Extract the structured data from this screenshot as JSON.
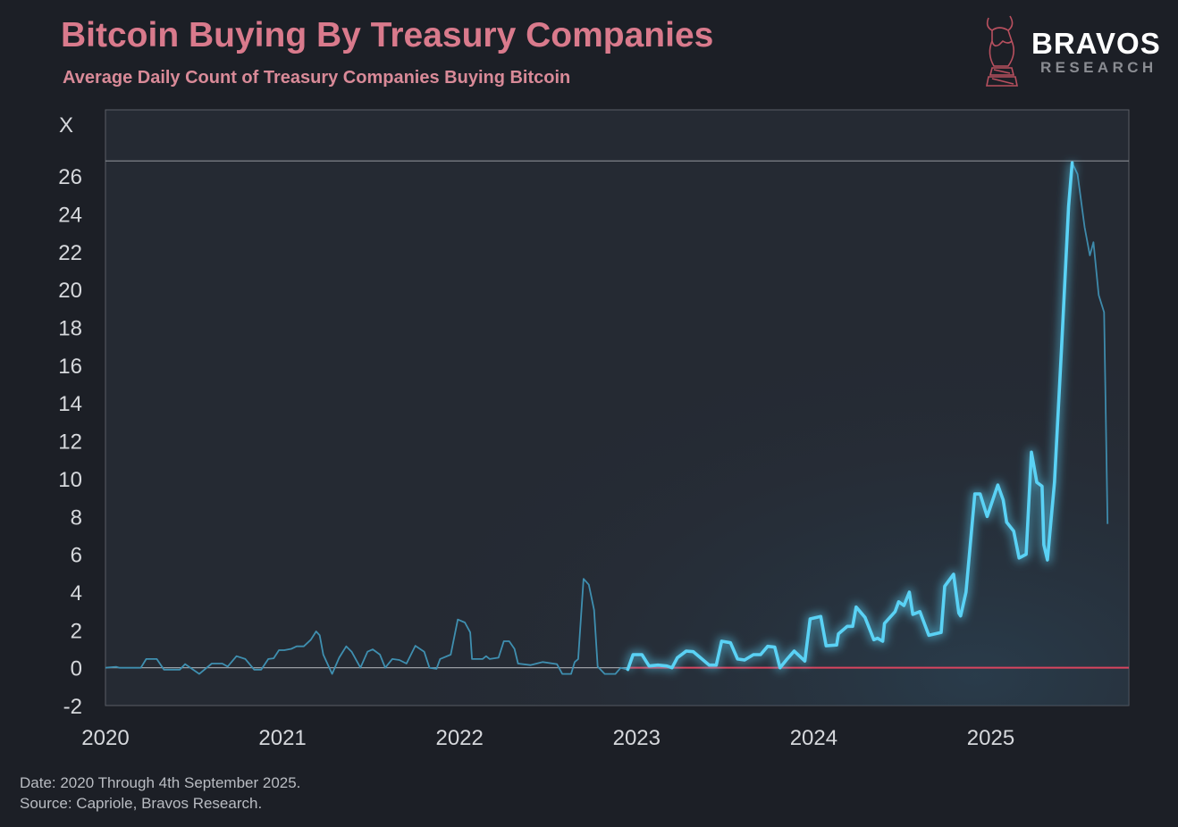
{
  "header": {
    "title": "Bitcoin Buying By Treasury Companies",
    "subtitle": "Average Daily Count of Treasury Companies Buying Bitcoin"
  },
  "logo": {
    "brand": "BRAVOS",
    "tagline": "RESEARCH",
    "icon": "bull-knight-chess-icon"
  },
  "footer": {
    "date_note": "Date: 2020 Through 4th September 2025.",
    "source_note": "Source: Capriole, Bravos Research."
  },
  "colors": {
    "title": "#d97a8c",
    "series": "#5ad2f5",
    "zero_line_recent": "#d9455f",
    "background": "#1c1f26",
    "plot_bg": "#252a33"
  },
  "chart_data": {
    "type": "line",
    "title": "Bitcoin Buying By Treasury Companies",
    "subtitle": "Average Daily Count of Treasury Companies Buying Bitcoin",
    "ylabel": "X",
    "xlabel": "",
    "xlim": [
      2020,
      2025.78
    ],
    "ylim": [
      -2,
      29.5
    ],
    "xticks": [
      "2020",
      "2021",
      "2022",
      "2023",
      "2024",
      "2025"
    ],
    "yticks": [
      "-2",
      "0",
      "2",
      "4",
      "6",
      "8",
      "10",
      "12",
      "14",
      "16",
      "18",
      "20",
      "22",
      "24",
      "26"
    ],
    "reference_lines": [
      {
        "y": 0
      },
      {
        "y": 26.8
      }
    ],
    "grid": false,
    "highlight_range": [
      2022.95,
      2025.46
    ],
    "series": [
      {
        "x": [
          2020.0,
          2020.06,
          2020.08,
          2020.2,
          2020.23,
          2020.29,
          2020.33,
          2020.42,
          2020.45,
          2020.48,
          2020.53,
          2020.6,
          2020.66,
          2020.69,
          2020.74,
          2020.79,
          2020.84,
          2020.88,
          2020.92,
          2020.95,
          2020.98,
          2021.01,
          2021.05,
          2021.08,
          2021.12,
          2021.16,
          2021.19,
          2021.21,
          2021.23,
          2021.28,
          2021.32,
          2021.36,
          2021.39,
          2021.44,
          2021.48,
          2021.51,
          2021.55,
          2021.58,
          2021.62,
          2021.66,
          2021.7,
          2021.75,
          2021.8,
          2021.83,
          2021.87,
          2021.89,
          2021.95,
          2021.99,
          2022.03,
          2022.06,
          2022.07,
          2022.13,
          2022.15,
          2022.17,
          2022.22,
          2022.25,
          2022.28,
          2022.31,
          2022.33,
          2022.4,
          2022.47,
          2022.55,
          2022.58,
          2022.63,
          2022.65,
          2022.67,
          2022.7,
          2022.73,
          2022.76,
          2022.78,
          2022.82,
          2022.88,
          2022.91,
          2022.95,
          2022.98,
          2023.03,
          2023.07,
          2023.12,
          2023.17,
          2023.2,
          2023.23,
          2023.28,
          2023.32,
          2023.36,
          2023.41,
          2023.45,
          2023.48,
          2023.53,
          2023.57,
          2023.61,
          2023.66,
          2023.7,
          2023.74,
          2023.78,
          2023.81,
          2023.85,
          2023.89,
          2023.95,
          2023.98,
          2024.04,
          2024.07,
          2024.13,
          2024.14,
          2024.19,
          2024.22,
          2024.24,
          2024.29,
          2024.34,
          2024.36,
          2024.39,
          2024.4,
          2024.46,
          2024.48,
          2024.51,
          2024.54,
          2024.56,
          2024.6,
          2024.65,
          2024.72,
          2024.74,
          2024.79,
          2024.82,
          2024.83,
          2024.86,
          2024.91,
          2024.94,
          2024.98,
          2025.04,
          2025.07,
          2025.09,
          2025.13,
          2025.16,
          2025.2,
          2025.23,
          2025.26,
          2025.29,
          2025.3,
          2025.32,
          2025.36,
          2025.4,
          2025.44,
          2025.46,
          2025.49,
          2025.53,
          2025.56,
          2025.58,
          2025.61,
          2025.64,
          2025.66
        ],
        "y": [
          0,
          0.05,
          0,
          0,
          0.46,
          0.46,
          -0.1,
          -0.1,
          0.19,
          0,
          -0.33,
          0.22,
          0.22,
          0.06,
          0.61,
          0.46,
          -0.1,
          -0.1,
          0.46,
          0.5,
          0.93,
          0.93,
          1.0,
          1.13,
          1.13,
          1.48,
          1.92,
          1.71,
          0.69,
          -0.33,
          0.53,
          1.13,
          0.85,
          0,
          0.85,
          0.97,
          0.69,
          0,
          0.46,
          0.41,
          0.22,
          1.16,
          0.85,
          0,
          -0.06,
          0.46,
          0.69,
          2.55,
          2.39,
          1.87,
          0.46,
          0.46,
          0.61,
          0.46,
          0.53,
          1.4,
          1.4,
          1.0,
          0.22,
          0.14,
          0.3,
          0.19,
          -0.33,
          -0.33,
          0.3,
          0.46,
          4.7,
          4.39,
          3.05,
          0.06,
          -0.33,
          -0.33,
          0,
          -0.09,
          0.69,
          0.69,
          0.09,
          0.14,
          0.09,
          0,
          0.53,
          0.88,
          0.85,
          0.53,
          0.14,
          0.14,
          1.4,
          1.32,
          0.46,
          0.41,
          0.69,
          0.69,
          1.13,
          1.09,
          0,
          0.46,
          0.88,
          0.35,
          2.58,
          2.71,
          1.16,
          1.2,
          1.79,
          2.19,
          2.19,
          3.21,
          2.66,
          1.48,
          1.56,
          1.4,
          2.34,
          2.97,
          3.49,
          3.29,
          4.0,
          2.82,
          2.97,
          1.71,
          1.87,
          4.31,
          4.94,
          2.89,
          2.74,
          4.0,
          9.19,
          9.19,
          8.0,
          9.66,
          8.87,
          7.69,
          7.22,
          5.8,
          6.0,
          11.4,
          9.8,
          9.6,
          6.5,
          5.7,
          9.8,
          16.9,
          24.4,
          26.7,
          26.1,
          23.3,
          21.8,
          22.5,
          19.7,
          18.8,
          7.6
        ]
      }
    ]
  }
}
